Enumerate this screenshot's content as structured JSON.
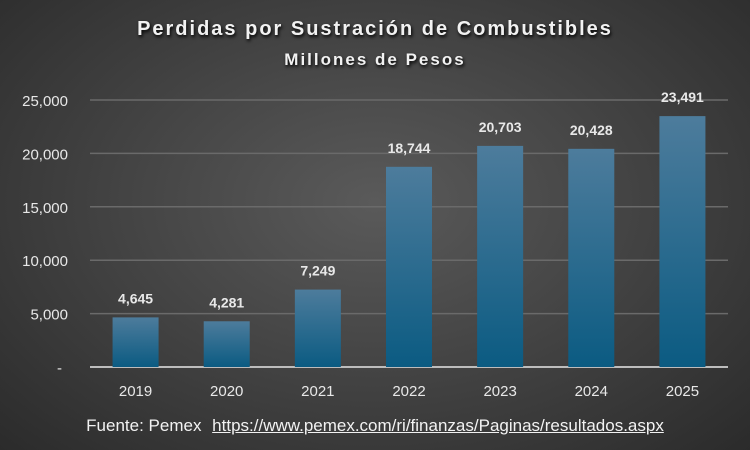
{
  "chart_data": {
    "type": "bar",
    "title": "Perdidas por Sustración de Combustibles",
    "subtitle": "Millones de Pesos",
    "categories": [
      "2019",
      "2020",
      "2021",
      "2022",
      "2023",
      "2024",
      "2025"
    ],
    "values": [
      4645,
      4281,
      7249,
      18744,
      20703,
      20428,
      23491
    ],
    "data_labels": [
      "4,645",
      "4,281",
      "7,249",
      "18,744",
      "20,703",
      "20,428",
      "23,491"
    ],
    "ylim": [
      0,
      25000
    ],
    "yticks": [
      0,
      5000,
      10000,
      15000,
      20000,
      25000
    ],
    "ytick_labels": [
      "-",
      "5,000",
      "10,000",
      "15,000",
      "20,000",
      "25,000"
    ],
    "xlabel": "",
    "ylabel": "",
    "grid": true,
    "legend": "none",
    "colors": {
      "bar_top": "#4d7c9c",
      "bar_bottom": "#0b5b82",
      "background": "#454545",
      "text": "#f2f2f2"
    }
  },
  "source": {
    "label": "Fuente: Pemex",
    "link": "https://www.pemex.com/ri/finanzas/Paginas/resultados.aspx"
  }
}
